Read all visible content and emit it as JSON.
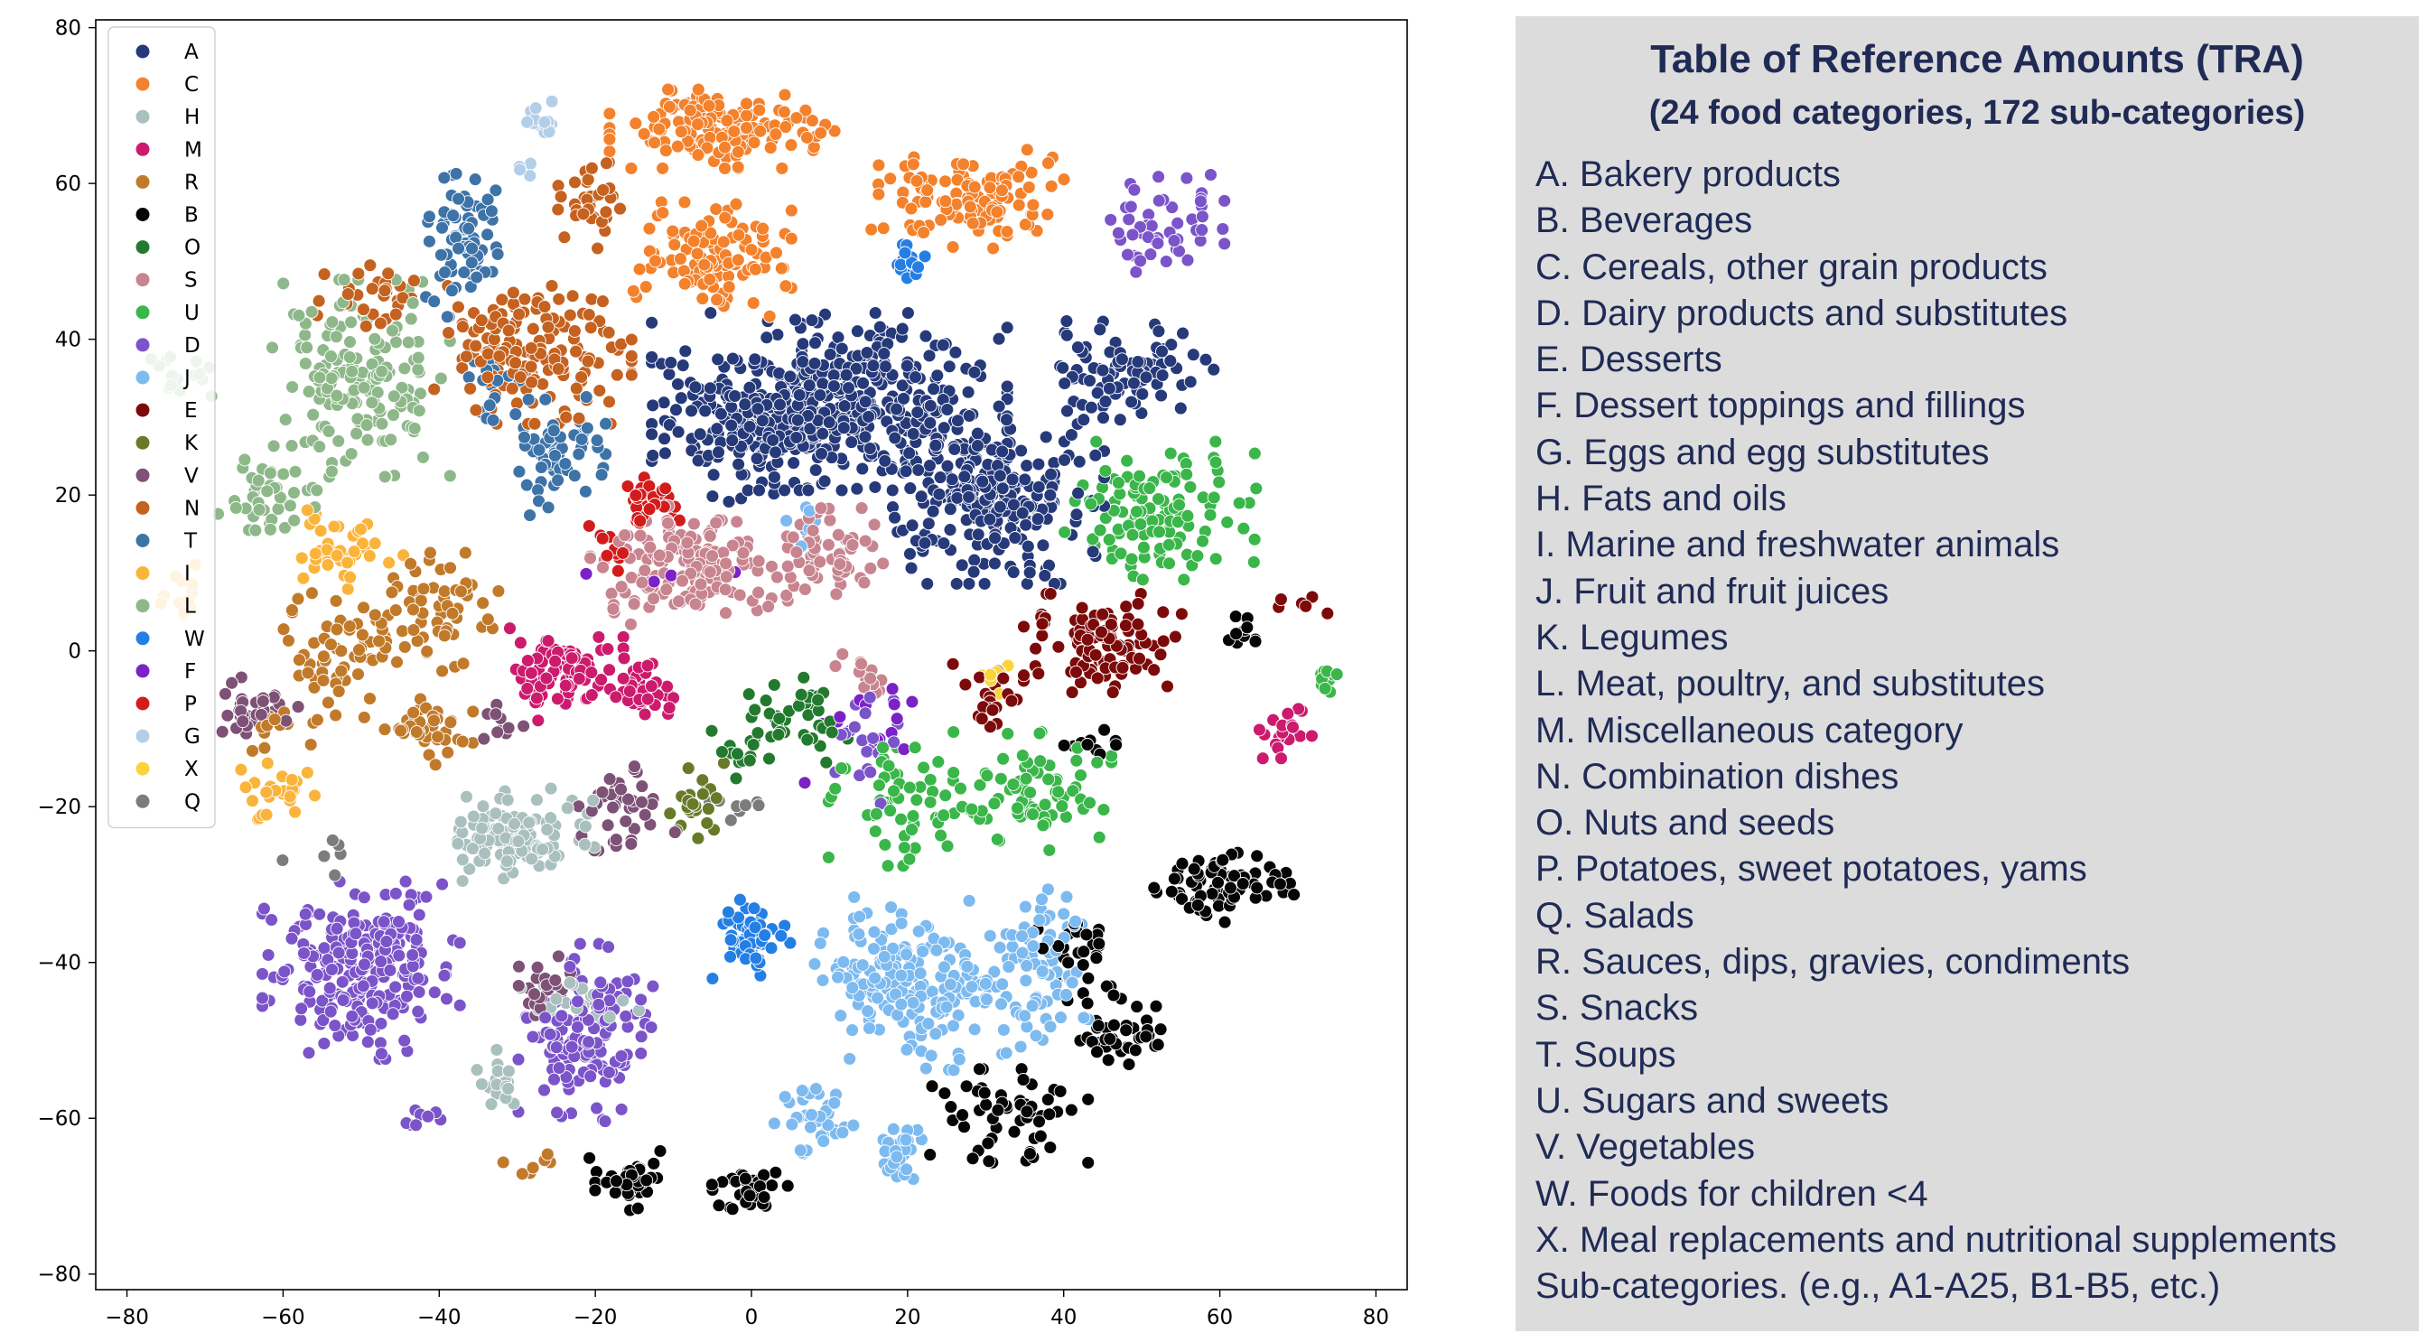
{
  "chart_data": {
    "type": "scatter",
    "title": "",
    "xlabel": "",
    "ylabel": "",
    "xlim": [
      -84,
      84
    ],
    "ylim": [
      -82,
      81
    ],
    "xticks": [
      -80,
      -60,
      -40,
      -20,
      0,
      20,
      40,
      60,
      80
    ],
    "yticks": [
      80,
      60,
      40,
      20,
      0,
      -20,
      -40,
      -60,
      -80
    ],
    "xtick_labels": [
      "−80",
      "−60",
      "−40",
      "−20",
      "0",
      "20",
      "40",
      "60",
      "80"
    ],
    "ytick_labels": [
      "80",
      "60",
      "40",
      "20",
      "0",
      "−20",
      "−40",
      "−60",
      "−80"
    ],
    "grid": false,
    "legend_position": "upper-left",
    "series": [
      {
        "name": "A",
        "color": "#263a7a",
        "clusters": [
          [
            10,
            32,
            18,
            9,
            420
          ],
          [
            30,
            20,
            12,
            9,
            260
          ],
          [
            48,
            36,
            9,
            5,
            90
          ],
          [
            0,
            28,
            10,
            7,
            120
          ]
        ]
      },
      {
        "name": "C",
        "color": "#f4812b",
        "clusters": [
          [
            -3,
            67,
            12,
            4,
            140
          ],
          [
            28,
            58,
            10,
            5,
            110
          ],
          [
            -5,
            50,
            8,
            6,
            110
          ],
          [
            -8,
            70,
            3,
            1,
            10
          ]
        ]
      },
      {
        "name": "H",
        "color": "#a9c0be",
        "clusters": [
          [
            -30,
            -24,
            8,
            5,
            110
          ],
          [
            -32,
            -55,
            2.5,
            3,
            20
          ],
          [
            -22,
            -45,
            6,
            3,
            25
          ]
        ]
      },
      {
        "name": "M",
        "color": "#cc1b6d",
        "clusters": [
          [
            -24,
            -3,
            6,
            5,
            90
          ],
          [
            -14,
            -5,
            4,
            4,
            40
          ],
          [
            68,
            -10,
            3,
            3,
            20
          ]
        ]
      },
      {
        "name": "R",
        "color": "#c17a2a",
        "clusters": [
          [
            -53,
            0,
            6,
            7,
            60
          ],
          [
            -40,
            5,
            6,
            6,
            60
          ],
          [
            -42,
            -10,
            5,
            4,
            40
          ],
          [
            -60,
            -10,
            4,
            3,
            15
          ],
          [
            -28,
            -66,
            3,
            1.5,
            8
          ]
        ]
      },
      {
        "name": "B",
        "color": "#050505",
        "clusters": [
          [
            -15,
            -68,
            5,
            3,
            40
          ],
          [
            0,
            -69,
            4,
            3,
            35
          ],
          [
            33,
            -60,
            8,
            5,
            60
          ],
          [
            47,
            -49,
            6,
            4,
            40
          ],
          [
            60,
            -30,
            8,
            4,
            70
          ],
          [
            43,
            -38,
            5,
            4,
            25
          ],
          [
            63,
            3,
            2,
            3,
            10
          ],
          [
            42,
            -12,
            4,
            2,
            10
          ]
        ]
      },
      {
        "name": "O",
        "color": "#237a2e",
        "clusters": [
          [
            6,
            -8,
            5,
            5,
            40
          ],
          [
            -2,
            -13,
            3,
            3,
            15
          ]
        ]
      },
      {
        "name": "S",
        "color": "#c8848f",
        "clusters": [
          [
            -8,
            11,
            10,
            6,
            150
          ],
          [
            10,
            12,
            6,
            5,
            60
          ],
          [
            14,
            -3,
            3,
            3,
            15
          ]
        ]
      },
      {
        "name": "U",
        "color": "#3ab64a",
        "clusters": [
          [
            52,
            18,
            10,
            7,
            120
          ],
          [
            36,
            -18,
            8,
            6,
            80
          ],
          [
            20,
            -20,
            8,
            6,
            60
          ],
          [
            74,
            -3,
            2,
            2,
            10
          ]
        ]
      },
      {
        "name": "D",
        "color": "#7b54c9",
        "clusters": [
          [
            -50,
            -41,
            10,
            9,
            250
          ],
          [
            -21,
            -49,
            7,
            9,
            140
          ],
          [
            53,
            55,
            6,
            6,
            50
          ],
          [
            -42,
            -60,
            2.5,
            1.5,
            8
          ],
          [
            15,
            -12,
            4,
            6,
            20
          ]
        ]
      },
      {
        "name": "J",
        "color": "#7dbaf0",
        "clusters": [
          [
            20,
            -43,
            10,
            9,
            180
          ],
          [
            36,
            -42,
            6,
            9,
            80
          ],
          [
            8,
            -60,
            4,
            4,
            35
          ],
          [
            19,
            -64,
            3,
            3,
            30
          ],
          [
            7,
            17,
            2,
            3,
            8
          ]
        ]
      },
      {
        "name": "E",
        "color": "#7d0a0a",
        "clusters": [
          [
            45,
            1,
            8,
            5,
            110
          ],
          [
            30,
            -6,
            4,
            4,
            20
          ],
          [
            70,
            6,
            3,
            1,
            6
          ]
        ]
      },
      {
        "name": "K",
        "color": "#687a28",
        "clusters": [
          [
            -7,
            -19,
            4,
            4,
            25
          ]
        ]
      },
      {
        "name": "V",
        "color": "#7e5176",
        "clusters": [
          [
            -63,
            -7,
            5,
            4,
            30
          ],
          [
            -27,
            -43,
            3,
            3,
            25
          ],
          [
            -17,
            -20,
            6,
            6,
            40
          ],
          [
            -33,
            -10,
            3,
            3,
            10
          ]
        ]
      },
      {
        "name": "N",
        "color": "#c5621f",
        "clusters": [
          [
            -28,
            38,
            10,
            7,
            160
          ],
          [
            -20,
            58,
            4,
            5,
            35
          ],
          [
            -49,
            45,
            6,
            4,
            30
          ]
        ]
      },
      {
        "name": "T",
        "color": "#3e73a7",
        "clusters": [
          [
            -37,
            53,
            4,
            8,
            70
          ],
          [
            -25,
            25,
            5,
            6,
            60
          ],
          [
            -33,
            34,
            3,
            4,
            20
          ]
        ]
      },
      {
        "name": "I",
        "color": "#fbb43b",
        "clusters": [
          [
            -52,
            13,
            6,
            4,
            40
          ],
          [
            -61,
            -18,
            4,
            4,
            25
          ],
          [
            -73,
            8,
            3,
            3,
            12
          ]
        ]
      },
      {
        "name": "L",
        "color": "#8eb88a",
        "clusters": [
          [
            -50,
            35,
            9,
            10,
            170
          ],
          [
            -62,
            20,
            5,
            5,
            45
          ],
          [
            -72,
            36,
            4,
            3,
            15
          ]
        ]
      },
      {
        "name": "W",
        "color": "#247fe5",
        "clusters": [
          [
            0,
            -37,
            4,
            4,
            60
          ],
          [
            20,
            50,
            2,
            2,
            15
          ]
        ]
      },
      {
        "name": "F",
        "color": "#7b22c7",
        "clusters": [
          [
            14,
            -10,
            8,
            6,
            15
          ],
          [
            -12,
            13,
            8,
            8,
            6
          ]
        ]
      },
      {
        "name": "P",
        "color": "#d31b1b",
        "clusters": [
          [
            -13,
            19,
            3,
            3,
            40
          ],
          [
            -18,
            13,
            3,
            3,
            10
          ]
        ]
      },
      {
        "name": "G",
        "color": "#b3cfe8",
        "clusters": [
          [
            -27,
            68,
            2,
            2,
            15
          ],
          [
            -29,
            63,
            1,
            2,
            4
          ]
        ]
      },
      {
        "name": "X",
        "color": "#fbd43b",
        "clusters": [
          [
            31,
            -3,
            2,
            2,
            8
          ]
        ]
      },
      {
        "name": "Q",
        "color": "#7c7c7c",
        "clusters": [
          [
            -2,
            -20,
            3,
            2,
            8
          ],
          [
            -55,
            -25,
            4,
            3,
            6
          ]
        ]
      }
    ]
  },
  "tra": {
    "title": "Table of Reference Amounts (TRA)",
    "subtitle": "(24 food categories, 172 sub-categories)",
    "items": [
      "A. Bakery products",
      "B. Beverages",
      "C. Cereals, other grain products",
      "D. Dairy products and substitutes",
      "E. Desserts",
      "F. Dessert toppings and fillings",
      "G. Eggs and egg substitutes",
      "H. Fats and oils",
      "I. Marine and freshwater animals",
      "J. Fruit and fruit juices",
      "K. Legumes",
      "L. Meat, poultry, and substitutes",
      "M. Miscellaneous category",
      "N. Combination dishes",
      "O. Nuts and seeds",
      "P. Potatoes, sweet potatoes, yams",
      "Q. Salads",
      "R. Sauces, dips, gravies, condiments",
      "S. Snacks",
      "T. Soups",
      "U. Sugars and sweets",
      "V. Vegetables",
      "W. Foods for children <4",
      "X. Meal replacements and nutritional supplements",
      "Sub-categories. (e.g., A1-A25, B1-B5, etc.)"
    ]
  }
}
